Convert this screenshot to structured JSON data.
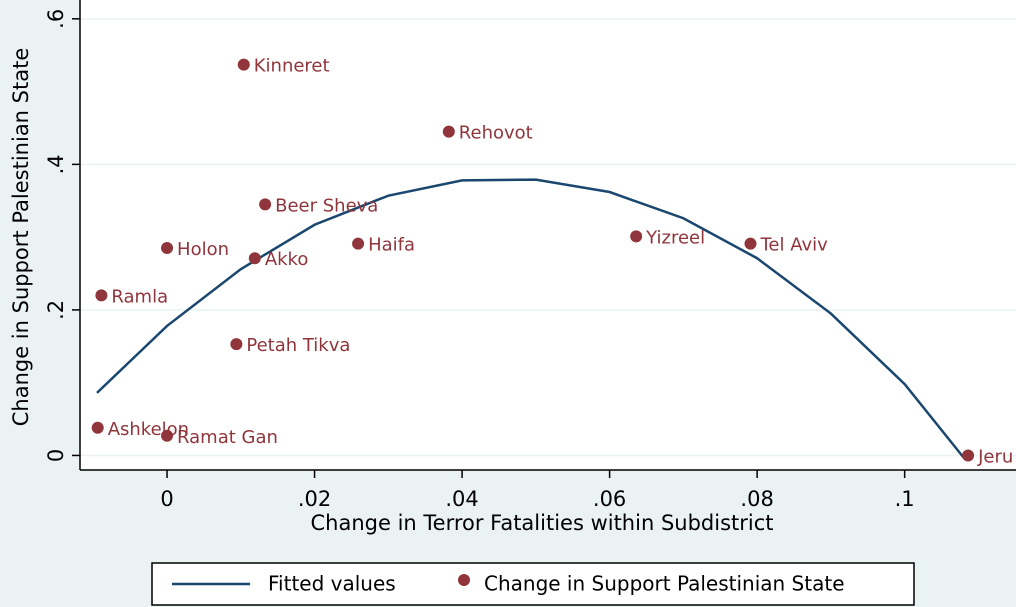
{
  "chart_data": {
    "type": "scatter",
    "x_label": "Change in Terror Fatalities within Subdistrict",
    "y_label": "Change in Support Palestinian State",
    "xlim": [
      -0.0118,
      0.1113
    ],
    "ylim": [
      -0.02,
      0.619
    ],
    "xticks": [
      0,
      {
        "value": 0.02,
        "label": ".02"
      },
      {
        "value": 0.04,
        "label": ".04"
      },
      {
        "value": 0.06,
        "label": ".06"
      },
      {
        "value": 0.08,
        "label": ".08"
      },
      {
        "value": 0.1,
        "label": ".1"
      }
    ],
    "yticks": [
      0,
      {
        "value": 0.2,
        "label": ".2"
      },
      {
        "value": 0.4,
        "label": ".4"
      },
      {
        "value": 0.6,
        "label": ".6"
      }
    ],
    "grid": true,
    "legend": "bottom",
    "series": [
      {
        "name": "Fitted values",
        "type": "line",
        "color": "#1a476f",
        "x": [
          -0.0095,
          0,
          0.01,
          0.02,
          0.03,
          0.04,
          0.05,
          0.06,
          0.07,
          0.08,
          0.09,
          0.1,
          0.108
        ],
        "values": [
          0.086,
          0.178,
          0.256,
          0.317,
          0.357,
          0.378,
          0.379,
          0.362,
          0.326,
          0.271,
          0.195,
          0.098,
          -0.003
        ]
      },
      {
        "name": "Change in Support Palestinian State",
        "type": "scatter",
        "color": "#90353b",
        "x": [
          0.0104,
          0.0382,
          0.0133,
          0.0259,
          0,
          0.0119,
          0.0636,
          0.0791,
          -0.0089,
          0.0094,
          -0.0094,
          0,
          0.1086
        ],
        "values": [
          0.537,
          0.445,
          0.345,
          0.291,
          0.285,
          0.271,
          0.301,
          0.291,
          0.22,
          0.153,
          0.038,
          0.027,
          0.0
        ],
        "labels": [
          "Kinneret",
          "Rehovot",
          "Beer Sheva",
          "Haifa",
          "Holon",
          "Akko",
          "Yizreel",
          "Tel Aviv",
          "Ramla",
          "Petah Tikva",
          "Ashkelon",
          "Ramat Gan",
          "Jeru"
        ]
      }
    ]
  }
}
